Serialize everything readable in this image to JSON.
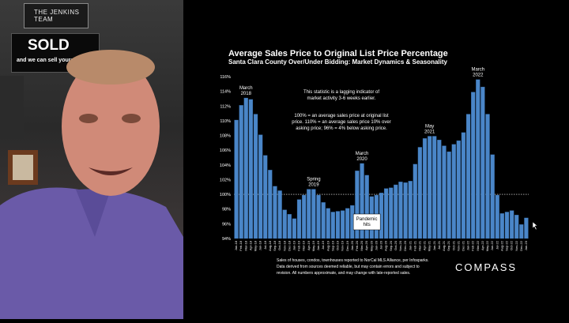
{
  "webcam": {
    "sign_team": "THE JENKINS TEAM",
    "sign_sold": "SOLD",
    "sign_sold_sub": "and we can sell yours"
  },
  "chart_data": {
    "type": "bar",
    "title": "Average Sales Price to Original List Price Percentage",
    "subtitle": "Santa Clara County Over/Under Bidding: Market Dynamics & Seasonality",
    "ylim": [
      94,
      116
    ],
    "yticks": [
      "94%",
      "96%",
      "98%",
      "100%",
      "102%",
      "104%",
      "106%",
      "108%",
      "110%",
      "112%",
      "114%",
      "116%"
    ],
    "reference_line": 100,
    "categories": [
      "Jan-18",
      "Feb-18",
      "Mar-18",
      "Apr-18",
      "May-18",
      "Jun-18",
      "Jul-18",
      "Aug-18",
      "Sep-18",
      "Oct-18",
      "Nov-18",
      "Dec-18",
      "Jan-19",
      "Feb-19",
      "Mar-19",
      "Apr-19",
      "May-19",
      "Jun-19",
      "Jul-19",
      "Aug-19",
      "Sep-19",
      "Oct-19",
      "Nov-19",
      "Dec-19",
      "Jan-20",
      "Feb-20",
      "Mar-20",
      "Apr-20",
      "May-20",
      "Jun-20",
      "Jul-20",
      "Aug-20",
      "Sep-20",
      "Oct-20",
      "Nov-20",
      "Dec-20",
      "Jan-21",
      "Feb-21",
      "Mar-21",
      "Apr-21",
      "May-21",
      "Jun-21",
      "Jul-21",
      "Aug-21",
      "Sep-21",
      "Oct-21",
      "Nov-21",
      "Dec-21",
      "Jan-22",
      "Feb-22",
      "Mar-22",
      "Apr-22",
      "May-22",
      "Jun-22",
      "Jul-22",
      "Aug-22",
      "Sep-22",
      "Oct-22",
      "Nov-22",
      "Dec-22",
      "Jan-23"
    ],
    "values": [
      110.1,
      112.1,
      113.1,
      112.9,
      110.9,
      108.1,
      105.3,
      103.3,
      101.1,
      100.5,
      97.9,
      97.3,
      96.7,
      99.3,
      99.9,
      100.7,
      100.7,
      99.9,
      98.9,
      98.1,
      97.6,
      97.7,
      97.8,
      98.1,
      98.5,
      103.2,
      104.2,
      102.6,
      99.7,
      99.9,
      100.2,
      100.8,
      100.9,
      101.3,
      101.7,
      101.6,
      101.8,
      104.1,
      106.4,
      107.6,
      107.9,
      107.9,
      107.4,
      106.6,
      105.8,
      106.8,
      107.3,
      108.4,
      110.9,
      113.9,
      115.6,
      114.6,
      110.9,
      105.4,
      99.9,
      97.4,
      97.6,
      97.8,
      97.2,
      95.9,
      96.8
    ],
    "annotations": [
      {
        "label": [
          "March",
          "2018"
        ],
        "at": "Mar-18"
      },
      {
        "label": [
          "Spring",
          "2019"
        ],
        "at": "May-19"
      },
      {
        "label": [
          "March",
          "2020"
        ],
        "at": "Mar-20"
      },
      {
        "label": [
          "May",
          "2021"
        ],
        "at": "May-21"
      },
      {
        "label": [
          "March",
          "2022"
        ],
        "at": "Mar-22"
      },
      {
        "label": [
          "Pandemic",
          "hits"
        ],
        "at": "Apr-20",
        "boxed": true
      }
    ],
    "note_lines": [
      "This statistic is a lagging indicator of",
      "market activity 3-6 weeks earlier."
    ],
    "definition_lines": [
      "100% = an average sales price at original list",
      "price. 110% = an average sales price 10% over",
      "asking price; 96% = 4% below asking price."
    ],
    "footer_lines": [
      "Sales of houses, condos, townhouses reported to NorCal MLS Alliance, per Infosparks.",
      "Data derived from sources deemed reliable, but may contain errors and subject to",
      "revision. All numbers approximate, and may change with late-reported sales."
    ],
    "brand": "COMPASS",
    "colors": {
      "bar": "#4a86c8",
      "bar_stroke": "#2f5f95",
      "text": "#ffffff",
      "grid": "#ffffff"
    }
  }
}
